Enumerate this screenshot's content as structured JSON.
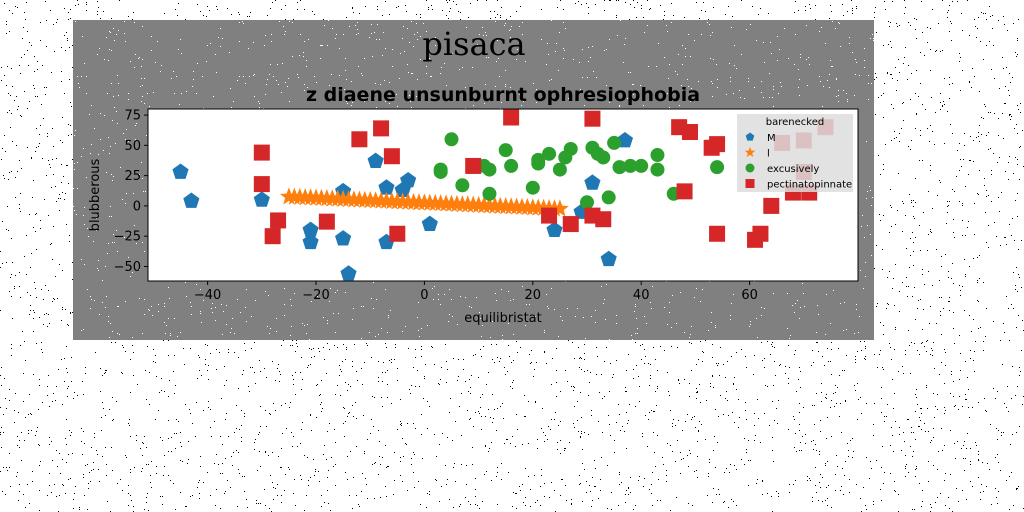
{
  "figure": {
    "suptitle": "pisaca",
    "background": "#808080"
  },
  "chart_data": {
    "type": "scatter",
    "title": "z diaene unsunburnt ophresiophobia",
    "xlabel": "equilibristat",
    "ylabel": "blubberous",
    "xlim": [
      -51,
      80
    ],
    "ylim": [
      -62,
      80
    ],
    "xticks": [
      -40,
      -20,
      0,
      20,
      40,
      60
    ],
    "yticks": [
      -50,
      -25,
      0,
      25,
      50,
      75
    ],
    "grid": false,
    "legend": {
      "title": "barenecked",
      "location": "top-right"
    },
    "series": [
      {
        "name": "M",
        "marker": "pentagon",
        "color": "#1f77b4",
        "points": [
          [
            -45,
            28
          ],
          [
            -43,
            4
          ],
          [
            -30,
            5
          ],
          [
            -21,
            -30
          ],
          [
            -21,
            -20
          ],
          [
            -15,
            -27
          ],
          [
            -15,
            12
          ],
          [
            -14,
            -56
          ],
          [
            -9,
            37
          ],
          [
            -7,
            15
          ],
          [
            -7,
            -30
          ],
          [
            -4,
            13
          ],
          [
            -3,
            21
          ],
          [
            1,
            -15
          ],
          [
            24,
            -20
          ],
          [
            29,
            -5
          ],
          [
            31,
            19
          ],
          [
            34,
            -44
          ],
          [
            37,
            54
          ]
        ]
      },
      {
        "name": "l",
        "marker": "star",
        "color": "#ff7f0e",
        "points": [
          [
            -25,
            7.5
          ],
          [
            -24,
            7.3
          ],
          [
            -23,
            7.1
          ],
          [
            -22,
            6.9
          ],
          [
            -21,
            6.7
          ],
          [
            -20,
            6.5
          ],
          [
            -19,
            6.3
          ],
          [
            -18,
            6.1
          ],
          [
            -17,
            5.9
          ],
          [
            -16,
            5.7
          ],
          [
            -15,
            5.5
          ],
          [
            -14,
            5.3
          ],
          [
            -13,
            5.1
          ],
          [
            -12,
            4.9
          ],
          [
            -11,
            4.7
          ],
          [
            -10,
            4.5
          ],
          [
            -9,
            4.3
          ],
          [
            -8,
            4.1
          ],
          [
            -7,
            3.9
          ],
          [
            -6,
            3.7
          ],
          [
            -5,
            3.5
          ],
          [
            -4,
            3.3
          ],
          [
            -3,
            3.1
          ],
          [
            -2,
            2.9
          ],
          [
            -1,
            2.7
          ],
          [
            0,
            2.5
          ],
          [
            1,
            2.3
          ],
          [
            2,
            2.1
          ],
          [
            3,
            1.9
          ],
          [
            4,
            1.7
          ],
          [
            5,
            1.5
          ],
          [
            6,
            1.3
          ],
          [
            7,
            1.1
          ],
          [
            8,
            0.9
          ],
          [
            9,
            0.7
          ],
          [
            10,
            0.5
          ],
          [
            11,
            0.3
          ],
          [
            12,
            0.1
          ],
          [
            13,
            -0.1
          ],
          [
            14,
            -0.3
          ],
          [
            15,
            -0.5
          ],
          [
            16,
            -0.7
          ],
          [
            17,
            -0.9
          ],
          [
            18,
            -1.1
          ],
          [
            19,
            -1.3
          ],
          [
            20,
            -1.5
          ],
          [
            21,
            -1.7
          ],
          [
            22,
            -1.9
          ],
          [
            23,
            -2.1
          ],
          [
            24,
            -2.3
          ],
          [
            25,
            -2.5
          ]
        ]
      },
      {
        "name": "excusively",
        "marker": "circle",
        "color": "#2ca02c",
        "points": [
          [
            3,
            28
          ],
          [
            3,
            30
          ],
          [
            5,
            55
          ],
          [
            7,
            17
          ],
          [
            11,
            33
          ],
          [
            12,
            30
          ],
          [
            12,
            10
          ],
          [
            15,
            46
          ],
          [
            16,
            33
          ],
          [
            20,
            15
          ],
          [
            21,
            35
          ],
          [
            21,
            38
          ],
          [
            23,
            43
          ],
          [
            25,
            30
          ],
          [
            26,
            40
          ],
          [
            27,
            47
          ],
          [
            30,
            3
          ],
          [
            31,
            48
          ],
          [
            32,
            43
          ],
          [
            33,
            40
          ],
          [
            34,
            7
          ],
          [
            35,
            52
          ],
          [
            36,
            32
          ],
          [
            38,
            33
          ],
          [
            40,
            33
          ],
          [
            43,
            42
          ],
          [
            43,
            30
          ],
          [
            46,
            10
          ],
          [
            54,
            32
          ]
        ]
      },
      {
        "name": "pectinatopinnate",
        "marker": "square",
        "color": "#d62728",
        "points": [
          [
            -30,
            44
          ],
          [
            -30,
            18
          ],
          [
            -28,
            -25
          ],
          [
            -27,
            -12
          ],
          [
            -18,
            -13
          ],
          [
            -12,
            55
          ],
          [
            -8,
            64
          ],
          [
            -6,
            41
          ],
          [
            -5,
            -23
          ],
          [
            9,
            33
          ],
          [
            16,
            73
          ],
          [
            23,
            -8
          ],
          [
            27,
            -15
          ],
          [
            31,
            72
          ],
          [
            31,
            -8
          ],
          [
            33,
            -11
          ],
          [
            47,
            65
          ],
          [
            48,
            12
          ],
          [
            49,
            61
          ],
          [
            53,
            48
          ],
          [
            54,
            51
          ],
          [
            54,
            -23
          ],
          [
            61,
            -28
          ],
          [
            62,
            -23
          ],
          [
            64,
            0
          ],
          [
            66,
            52
          ],
          [
            68,
            11
          ],
          [
            70,
            28
          ],
          [
            70,
            54
          ],
          [
            71,
            11
          ],
          [
            74,
            65
          ]
        ]
      }
    ]
  }
}
